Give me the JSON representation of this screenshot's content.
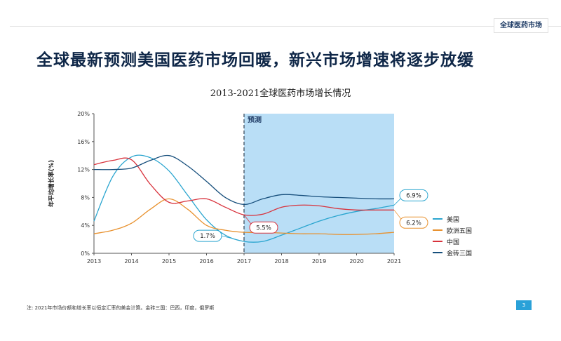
{
  "header": {
    "section_tag": "全球医药市场"
  },
  "headline": "全球最新预测美国医药市场回暖，新兴市场增速将逐步放缓",
  "footer": {
    "note": "注: 2021年市场价额和增长率以恒定汇率的美金计算。金砖三国：巴西，印度，俄罗斯",
    "page": "3"
  },
  "chart_data": {
    "type": "line",
    "title": "2013-2021全球医药市场增长情况",
    "xlabel": "",
    "ylabel": "年平均增长率(%)",
    "categories": [
      "2013",
      "2014",
      "2015",
      "2016",
      "2017",
      "2018",
      "2019",
      "2020",
      "2021"
    ],
    "x": [
      2013,
      2014,
      2015,
      2016,
      2017,
      2018,
      2019,
      2020,
      2021
    ],
    "ylim": [
      0,
      20
    ],
    "yticks": [
      0,
      4,
      8,
      12,
      16,
      20
    ],
    "ytick_labels": [
      "0%",
      "4%",
      "8%",
      "12%",
      "16%",
      "20%"
    ],
    "forecast_start": 2017,
    "forecast_label": "预测",
    "forecast_color": "#b9def6",
    "legend_position": "right",
    "series": [
      {
        "name": "美国",
        "color": "#2aa5cf",
        "points": [
          [
            2013,
            4.6
          ],
          [
            2013.5,
            11.0
          ],
          [
            2014,
            13.8
          ],
          [
            2014.5,
            13.7
          ],
          [
            2015,
            11.8
          ],
          [
            2015.5,
            8.3
          ],
          [
            2016,
            4.8
          ],
          [
            2016.5,
            2.6
          ],
          [
            2017,
            1.7
          ],
          [
            2017.5,
            1.7
          ],
          [
            2018,
            2.6
          ],
          [
            2018.5,
            3.6
          ],
          [
            2019,
            4.6
          ],
          [
            2019.5,
            5.4
          ],
          [
            2020,
            6.0
          ],
          [
            2020.5,
            6.4
          ],
          [
            2021,
            6.9
          ]
        ]
      },
      {
        "name": "欧洲五国",
        "color": "#e8912e",
        "points": [
          [
            2013,
            2.8
          ],
          [
            2013.5,
            3.3
          ],
          [
            2014,
            4.3
          ],
          [
            2014.5,
            6.3
          ],
          [
            2015,
            7.8
          ],
          [
            2015.5,
            6.3
          ],
          [
            2016,
            4.0
          ],
          [
            2016.5,
            3.3
          ],
          [
            2017,
            3.0
          ],
          [
            2017.5,
            3.0
          ],
          [
            2018,
            2.9
          ],
          [
            2018.5,
            2.8
          ],
          [
            2019,
            2.8
          ],
          [
            2019.5,
            2.7
          ],
          [
            2020,
            2.7
          ],
          [
            2020.5,
            2.8
          ],
          [
            2021,
            3.0
          ]
        ]
      },
      {
        "name": "中国",
        "color": "#d8323c",
        "points": [
          [
            2013,
            12.7
          ],
          [
            2013.5,
            13.3
          ],
          [
            2014,
            13.4
          ],
          [
            2014.5,
            9.9
          ],
          [
            2015,
            7.3
          ],
          [
            2015.5,
            7.5
          ],
          [
            2016,
            7.8
          ],
          [
            2016.5,
            6.6
          ],
          [
            2017,
            5.5
          ],
          [
            2017.5,
            5.6
          ],
          [
            2018,
            6.6
          ],
          [
            2018.5,
            6.9
          ],
          [
            2019,
            6.8
          ],
          [
            2019.5,
            6.4
          ],
          [
            2020,
            6.2
          ],
          [
            2020.5,
            6.2
          ],
          [
            2021,
            6.2
          ]
        ]
      },
      {
        "name": "金砖三国",
        "color": "#174f7c",
        "points": [
          [
            2013,
            12.0
          ],
          [
            2013.5,
            12.0
          ],
          [
            2014,
            12.2
          ],
          [
            2014.5,
            13.3
          ],
          [
            2015,
            14.0
          ],
          [
            2015.5,
            12.5
          ],
          [
            2016,
            10.3
          ],
          [
            2016.5,
            8.0
          ],
          [
            2017,
            7.0
          ],
          [
            2017.5,
            7.8
          ],
          [
            2018,
            8.4
          ],
          [
            2018.5,
            8.3
          ],
          [
            2019,
            8.1
          ],
          [
            2019.5,
            8.0
          ],
          [
            2020,
            7.9
          ],
          [
            2020.5,
            7.8
          ],
          [
            2021,
            7.8
          ]
        ]
      }
    ],
    "annotations": [
      {
        "label": "6.9%",
        "series": "美国",
        "x": 2021,
        "y": 6.9,
        "anchor": "above-right",
        "color": "#2aa5cf"
      },
      {
        "label": "6.2%",
        "series": "中国",
        "x": 2021,
        "y": 6.2,
        "anchor": "below-right",
        "color": "#e8912e"
      },
      {
        "label": "5.5%",
        "series": "中国",
        "x": 2017,
        "y": 5.5,
        "anchor": "below-right",
        "color": "#d8323c"
      },
      {
        "label": "1.7%",
        "series": "美国",
        "x": 2017,
        "y": 1.7,
        "anchor": "left",
        "color": "#2aa5cf"
      }
    ]
  }
}
